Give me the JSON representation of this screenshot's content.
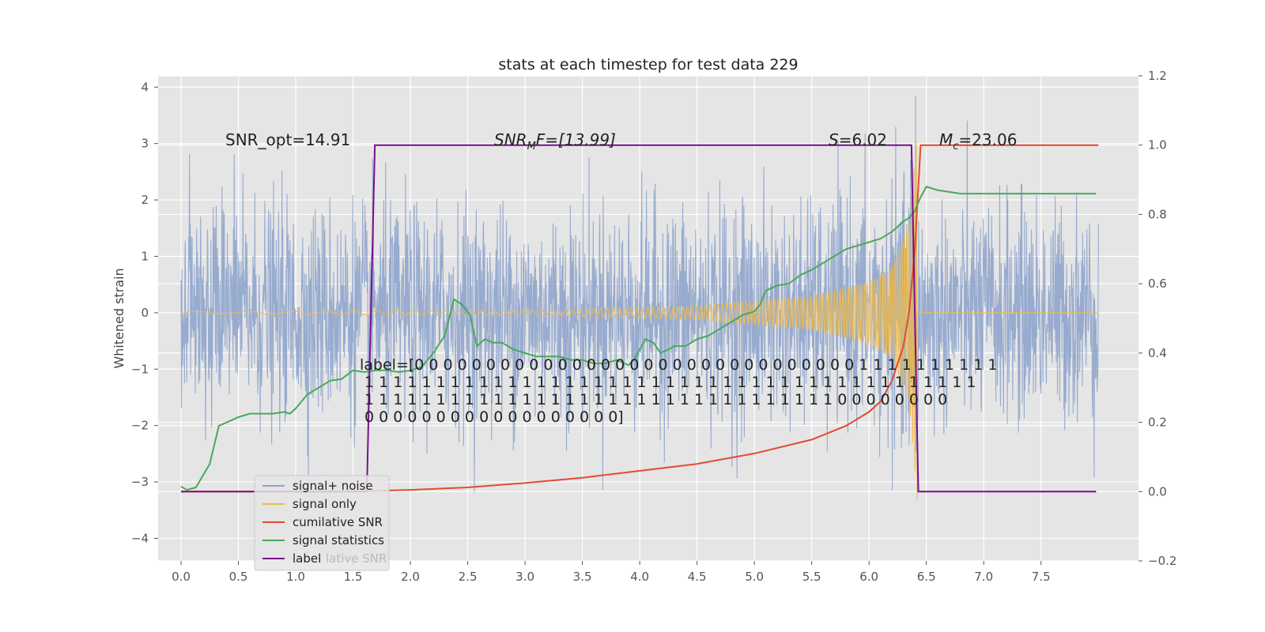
{
  "chart_data": {
    "type": "line",
    "title": "stats at each timestep for test data 229",
    "ylabel": "Whitened strain",
    "xlabel": "",
    "xlim": [
      -0.2,
      8.35
    ],
    "ylim": [
      -4.4,
      4.2
    ],
    "y2lim": [
      -0.2,
      1.2
    ],
    "xticks": [
      "0.0",
      "0.5",
      "1.0",
      "1.5",
      "2.0",
      "2.5",
      "3.0",
      "3.5",
      "4.0",
      "4.5",
      "5.0",
      "5.5",
      "6.0",
      "6.5",
      "7.0",
      "7.5"
    ],
    "yticks": [
      "4",
      "3",
      "2",
      "1",
      "0",
      "−1",
      "−2",
      "−3",
      "−4"
    ],
    "y2ticks": [
      "1.2",
      "1.0",
      "0.8",
      "0.6",
      "0.4",
      "0.2",
      "0.0",
      "−0.2"
    ],
    "grid": true,
    "legend_position": "lower-left",
    "colors": {
      "signal_noise": "#8EA4CC",
      "signal_only": "#EEBA4A",
      "cumulative_snr": "#E24A33",
      "signal_statistics": "#4AA85A",
      "label": "#7A0F8F",
      "plot_bg": "#E5E5E5",
      "grid": "#FFFFFF"
    },
    "series": [
      {
        "name": "signal+ noise",
        "axis": "left",
        "t_start": 0.0,
        "t_end": 8.0,
        "amplitude_std": 1.0,
        "range": [
          -4.1,
          4.1
        ]
      },
      {
        "name": "signal only",
        "axis": "left",
        "t_start": 0.0,
        "t_end": 6.42,
        "amplitude_envelope": [
          [
            0,
            0.02
          ],
          [
            3,
            0.05
          ],
          [
            4.5,
            0.12
          ],
          [
            5.5,
            0.3
          ],
          [
            6.0,
            0.55
          ],
          [
            6.2,
            0.8
          ],
          [
            6.35,
            1.6
          ],
          [
            6.42,
            3.4
          ]
        ]
      },
      {
        "name": "cumilative SNR",
        "axis": "right",
        "x": [
          0.0,
          0.5,
          1.0,
          1.5,
          2.0,
          2.5,
          3.0,
          3.5,
          4.0,
          4.5,
          5.0,
          5.5,
          5.8,
          6.0,
          6.1,
          6.2,
          6.3,
          6.35,
          6.4,
          6.45,
          8.0
        ],
        "y": [
          0.0,
          0.0,
          0.0,
          0.0,
          0.005,
          0.012,
          0.025,
          0.04,
          0.06,
          0.08,
          0.11,
          0.15,
          0.19,
          0.23,
          0.26,
          0.32,
          0.42,
          0.52,
          0.7,
          1.0,
          1.0
        ]
      },
      {
        "name": "signal statistics",
        "axis": "right",
        "x": [
          0.0,
          0.05,
          0.13,
          0.25,
          0.33,
          0.4,
          0.5,
          0.6,
          0.7,
          0.8,
          0.9,
          0.95,
          1.0,
          1.1,
          1.2,
          1.3,
          1.4,
          1.5,
          1.6,
          1.7,
          1.8,
          1.9,
          2.0,
          2.1,
          2.2,
          2.3,
          2.38,
          2.45,
          2.52,
          2.58,
          2.65,
          2.72,
          2.8,
          2.9,
          3.0,
          3.1,
          3.2,
          3.3,
          3.4,
          3.5,
          3.6,
          3.7,
          3.8,
          3.9,
          3.95,
          4.05,
          4.12,
          4.18,
          4.25,
          4.3,
          4.4,
          4.5,
          4.6,
          4.7,
          4.8,
          4.9,
          5.0,
          5.05,
          5.1,
          5.2,
          5.3,
          5.4,
          5.5,
          5.6,
          5.7,
          5.8,
          5.9,
          6.0,
          6.1,
          6.2,
          6.3,
          6.35,
          6.4,
          6.45,
          6.5,
          6.6,
          6.8,
          7.0,
          7.2,
          7.4,
          7.6,
          7.8,
          7.98
        ],
        "y": [
          0.015,
          0.005,
          0.012,
          0.08,
          0.19,
          0.2,
          0.215,
          0.225,
          0.225,
          0.225,
          0.23,
          0.225,
          0.24,
          0.28,
          0.3,
          0.32,
          0.325,
          0.35,
          0.345,
          0.35,
          0.35,
          0.345,
          0.35,
          0.36,
          0.4,
          0.45,
          0.555,
          0.54,
          0.51,
          0.42,
          0.44,
          0.43,
          0.43,
          0.41,
          0.4,
          0.39,
          0.39,
          0.39,
          0.38,
          0.38,
          0.37,
          0.37,
          0.38,
          0.365,
          0.38,
          0.44,
          0.43,
          0.4,
          0.41,
          0.42,
          0.42,
          0.44,
          0.45,
          0.47,
          0.49,
          0.51,
          0.52,
          0.54,
          0.58,
          0.595,
          0.6,
          0.625,
          0.64,
          0.66,
          0.68,
          0.7,
          0.71,
          0.72,
          0.73,
          0.75,
          0.78,
          0.79,
          0.81,
          0.85,
          0.88,
          0.87,
          0.86,
          0.86,
          0.86,
          0.86,
          0.86,
          0.86,
          0.86
        ]
      },
      {
        "name": "label",
        "axis": "right",
        "x": [
          0.0,
          1.62,
          1.69,
          6.37,
          6.43,
          7.98
        ],
        "y": [
          0.0,
          0.0,
          1.0,
          1.0,
          0.0,
          0.0
        ]
      }
    ],
    "annotations": {
      "snr_opt": "SNR_opt=14.91",
      "snr_mf_prefix": "SNR",
      "snr_mf_sub": "M",
      "snr_mf_suffix": "F=[13.99]",
      "s_var": "S",
      "s_val": "=6.02",
      "mc_var": "M",
      "mc_sub": "c",
      "mc_val": "=23.06",
      "label_lines": [
        "label=[0 0 0 0 0 0 0 0 0 0 0 0 0 0 0 0 0 0 0 0 0 0 0 0 0 0 0 0 0 0 0 1 1 1 1 1 1 1 1 1 1",
        " 1 1 1 1 1 1 1 1 1 1 1 1 1 1 1 1 1 1 1 1 1 1 1 1 1 1 1 1 1 1 1 1 1 1 1 1 1 1 1 1 1 1 1",
        " 1 1 1 1 1 1 1 1 1 1 1 1 1 1 1 1 1 1 1 1 1 1 1 1 1 1 1 1 1 1 1 1 1 0 0 0 0 0 0 0 0",
        " 0 0 0 0 0 0 0 0 0 0 0 0 0 0 0 0 0 0]"
      ]
    },
    "legend": {
      "entries": [
        "signal+ noise",
        "signal only",
        "cumilative SNR",
        "signal statistics",
        "label"
      ],
      "ghost_text": "lative SNR"
    }
  }
}
